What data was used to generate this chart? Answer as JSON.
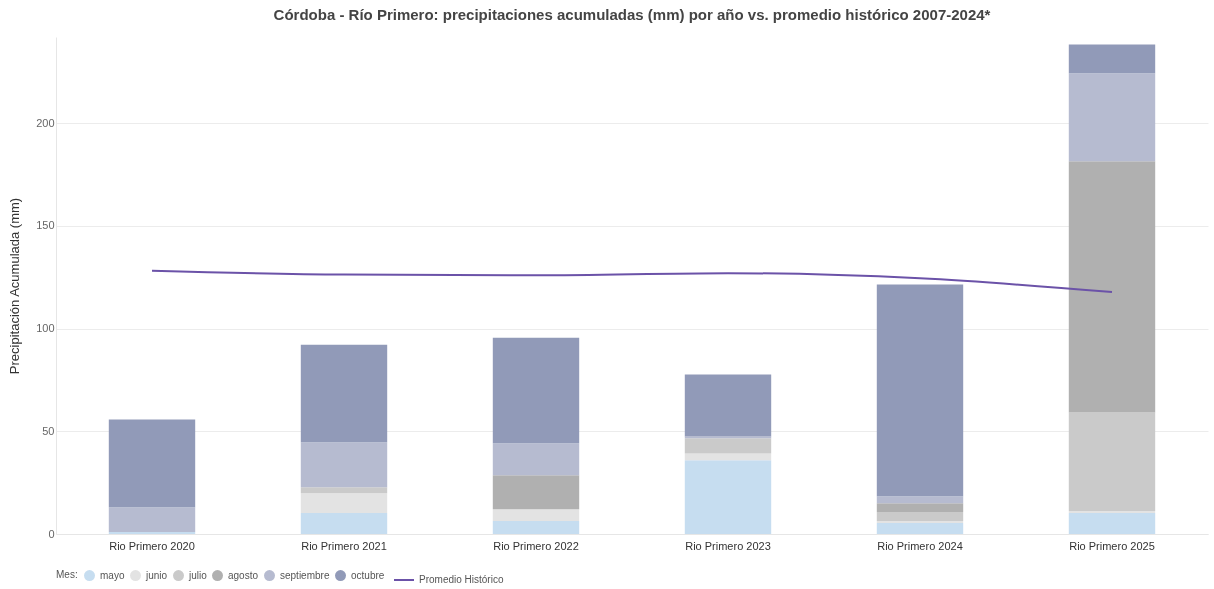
{
  "chart_data": {
    "type": "bar",
    "title": "Córdoba - Río Primero: precipitaciones acumuladas (mm) por año vs. promedio histórico 2007-2024*",
    "ylabel": "Precipitación Acumulada (mm)",
    "legend_title": "Mes:",
    "categories": [
      "Rio Primero 2020",
      "Rio Primero 2021",
      "Rio Primero 2022",
      "Rio Primero 2023",
      "Rio Primero 2024",
      "Rio Primero 2025"
    ],
    "stacked": true,
    "ylim": [
      0,
      242
    ],
    "yticks": [
      0,
      50,
      100,
      150,
      200
    ],
    "grid": "y",
    "legend": "bottom",
    "series": [
      {
        "name": "mayo",
        "color": "#c6ddf0",
        "values": [
          1,
          10.2,
          6.3,
          35.9,
          5.3,
          10.2
        ]
      },
      {
        "name": "junio",
        "color": "#e3e3e3",
        "values": [
          0,
          9.7,
          5.8,
          3.3,
          1,
          1
        ]
      },
      {
        "name": "julio",
        "color": "#cacaca",
        "values": [
          0,
          2.9,
          0,
          7.4,
          4.4,
          48
        ]
      },
      {
        "name": "agosto",
        "color": "#b0b0b0",
        "values": [
          0,
          0,
          16.5,
          0,
          4.3,
          122.3
        ]
      },
      {
        "name": "septiembre",
        "color": "#b6bbd0",
        "values": [
          12,
          21.9,
          15.6,
          0.9,
          3.4,
          42.8
        ]
      },
      {
        "name": "octubre",
        "color": "#919ab8",
        "values": [
          42.7,
          47.5,
          51.4,
          30.2,
          103.1,
          14
        ]
      },
      {
        "name": "Promedio Histórico",
        "type": "line",
        "color": "#6b52a8",
        "values": [
          128.2,
          126.3,
          126,
          127,
          124.5,
          117.8
        ]
      }
    ]
  }
}
